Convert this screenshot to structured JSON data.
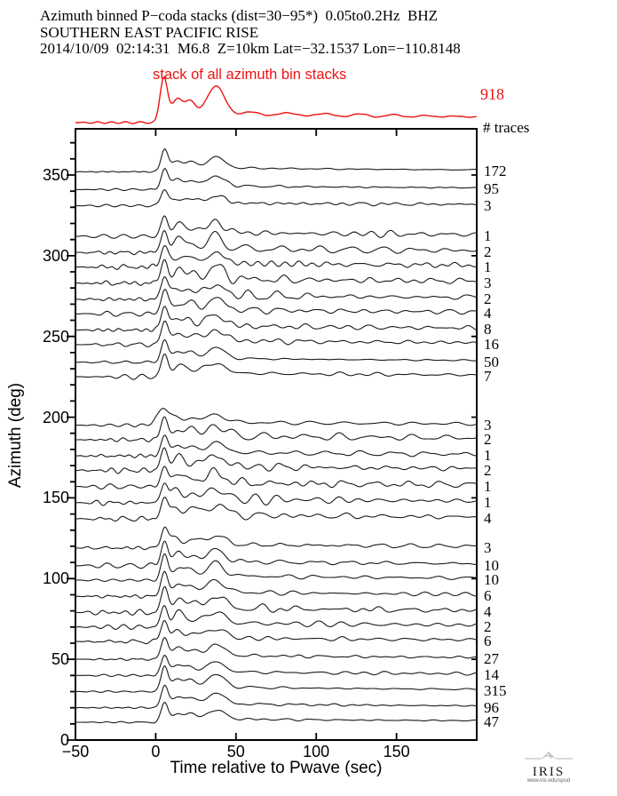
{
  "header": {
    "line1": "Azimuth binned P−coda stacks (dist=30−95*)  0.05to0.2Hz  BHZ",
    "line2": "SOUTHERN EAST PACIFIC RISE",
    "line3": "2014/10/09  02:14:31  M6.8  Z=10km Lat=−32.1537 Lon=−110.8148"
  },
  "traces_header": "# traces",
  "footer": {
    "logo_text": "IRIS",
    "logo_sub": "www.iris.edu/spud"
  },
  "colors": {
    "stack_red": "#ee1212",
    "trace_black": "#1a1a1a",
    "frame_black": "#000000",
    "background": "#ffffff"
  },
  "chart_data": {
    "type": "line",
    "title": "Azimuth binned P-coda stacks",
    "xlabel": "Time relative to Pwave (sec)",
    "ylabel": "Azimuth (deg)",
    "xlim": [
      -50,
      200
    ],
    "ylim": [
      0,
      378
    ],
    "x_ticks": [
      -50,
      0,
      50,
      100,
      150
    ],
    "y_ticks": [
      0,
      50,
      100,
      150,
      200,
      250,
      300,
      350
    ],
    "y_minor_step": 10,
    "grid": false,
    "legend": "none",
    "overall_stack": {
      "label": "stack of all azimuth bin stacks",
      "n": 918,
      "color": "#ee1212",
      "amp": 25,
      "noise": 0.09,
      "lift": 1.02,
      "tau": 230,
      "b3": 0.62,
      "t1": 5,
      "w1": 2.3,
      "seed": 7
    },
    "trace_description": "Each line is a stacked vertical-component P-coda waveform plotted at its azimuth bin; flat before t=0, sharp P onset near t=5-6 s, secondary arrivals near t=20 and t=38 s, then low-amplitude coda to t=200 s.",
    "traces": [
      {
        "azimuth": 352,
        "n": 172,
        "amp": 12.5,
        "noise": 0.1,
        "seed": 11
      },
      {
        "azimuth": 341,
        "n": 95,
        "amp": 11.5,
        "noise": 0.12,
        "seed": 12
      },
      {
        "azimuth": 331,
        "n": 3,
        "amp": 8.5,
        "noise": 0.3,
        "seed": 13
      },
      {
        "azimuth": 312,
        "n": 1,
        "amp": 12,
        "noise": 0.4,
        "seed": 14
      },
      {
        "azimuth": 302,
        "n": 2,
        "amp": 13,
        "noise": 0.38,
        "seed": 15
      },
      {
        "azimuth": 293,
        "n": 1,
        "amp": 12,
        "noise": 0.42,
        "seed": 16
      },
      {
        "azimuth": 283,
        "n": 3,
        "amp": 13.5,
        "noise": 0.36,
        "seed": 17
      },
      {
        "azimuth": 273,
        "n": 2,
        "amp": 12.5,
        "noise": 0.4,
        "seed": 18
      },
      {
        "azimuth": 264,
        "n": 4,
        "amp": 13,
        "noise": 0.32,
        "seed": 19
      },
      {
        "azimuth": 254,
        "n": 8,
        "amp": 13,
        "noise": 0.27,
        "seed": 20
      },
      {
        "azimuth": 245,
        "n": 16,
        "amp": 12.5,
        "noise": 0.22,
        "seed": 21
      },
      {
        "azimuth": 234,
        "n": 50,
        "amp": 12.5,
        "noise": 0.15,
        "seed": 22
      },
      {
        "azimuth": 225,
        "n": 7,
        "amp": 12,
        "noise": 0.27,
        "seed": 23
      },
      {
        "azimuth": 195,
        "n": 3,
        "amp": 9.5,
        "noise": 0.34,
        "seed": 24,
        "t1": 4,
        "w1": 3.4
      },
      {
        "azimuth": 186,
        "n": 2,
        "amp": 12.5,
        "noise": 0.38,
        "seed": 25
      },
      {
        "azimuth": 176,
        "n": 1,
        "amp": 11.5,
        "noise": 0.42,
        "seed": 26
      },
      {
        "azimuth": 167,
        "n": 2,
        "amp": 13,
        "noise": 0.4,
        "seed": 27
      },
      {
        "azimuth": 157,
        "n": 1,
        "amp": 12,
        "noise": 0.44,
        "seed": 28
      },
      {
        "azimuth": 147,
        "n": 1,
        "amp": 12,
        "noise": 0.42,
        "seed": 29
      },
      {
        "azimuth": 137,
        "n": 4,
        "amp": 12.5,
        "noise": 0.32,
        "seed": 30
      },
      {
        "azimuth": 119,
        "n": 3,
        "amp": 11,
        "noise": 0.3,
        "seed": 31
      },
      {
        "azimuth": 108,
        "n": 10,
        "amp": 13.5,
        "noise": 0.24,
        "seed": 32
      },
      {
        "azimuth": 99,
        "n": 10,
        "amp": 14,
        "noise": 0.24,
        "seed": 33
      },
      {
        "azimuth": 89,
        "n": 6,
        "amp": 13.5,
        "noise": 0.27,
        "seed": 34
      },
      {
        "azimuth": 79,
        "n": 4,
        "amp": 14,
        "noise": 0.3,
        "seed": 35
      },
      {
        "azimuth": 70,
        "n": 2,
        "amp": 13,
        "noise": 0.36,
        "seed": 36
      },
      {
        "azimuth": 61,
        "n": 6,
        "amp": 11.5,
        "noise": 0.27,
        "seed": 37
      },
      {
        "azimuth": 50,
        "n": 27,
        "amp": 12.5,
        "noise": 0.18,
        "seed": 38
      },
      {
        "azimuth": 40,
        "n": 14,
        "amp": 11.5,
        "noise": 0.22,
        "seed": 39
      },
      {
        "azimuth": 30,
        "n": 315,
        "amp": 14.5,
        "noise": 0.1,
        "seed": 40
      },
      {
        "azimuth": 20,
        "n": 96,
        "amp": 12.5,
        "noise": 0.12,
        "seed": 41
      },
      {
        "azimuth": 11,
        "n": 47,
        "amp": 10.5,
        "noise": 0.15,
        "seed": 42
      }
    ]
  }
}
